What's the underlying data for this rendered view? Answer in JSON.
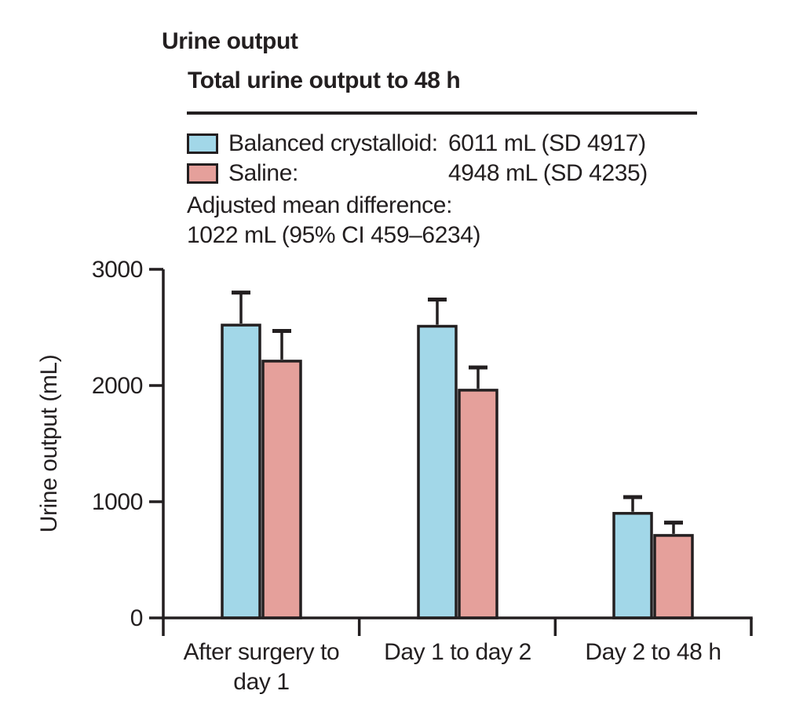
{
  "figure": {
    "title": "Urine output",
    "subtitle": "Total urine output to 48 h"
  },
  "summary": {
    "legend": [
      {
        "label": "Balanced crystalloid:",
        "value": "6011 mL (SD 4917)",
        "swatch_color": "#a2d7e8"
      },
      {
        "label": "Saline:",
        "value": "4948 mL (SD 4235)",
        "swatch_color": "#e5a09b"
      }
    ],
    "adjusted_label": "Adjusted mean difference:",
    "adjusted_value": "1022 mL (95% CI 459–6234)"
  },
  "chart_data": {
    "type": "bar",
    "title": "Total urine output to 48 h",
    "categories": [
      "After surgery to day 1",
      "Day 1 to day 2",
      "Day 2 to 48 h"
    ],
    "category_label_lines": [
      [
        "After surgery to",
        "day 1"
      ],
      [
        "Day 1 to day 2"
      ],
      [
        "Day 2 to 48 h"
      ]
    ],
    "series": [
      {
        "name": "Balanced crystalloid",
        "color": "#a2d7e8",
        "values": [
          2520,
          2510,
          900
        ],
        "error_upper": [
          280,
          230,
          140
        ]
      },
      {
        "name": "Saline",
        "color": "#e5a09b",
        "values": [
          2210,
          1960,
          710
        ],
        "error_upper": [
          260,
          195,
          110
        ]
      }
    ],
    "ylabel": "Urine output (mL)",
    "ylim": [
      0,
      3000
    ],
    "yticks": [
      0,
      1000,
      2000,
      3000
    ],
    "grid": false,
    "error_bars": "upper whiskers only",
    "legend_position": "above chart, top-left",
    "summary_stats": {
      "balanced_crystalloid_total": "6011 mL (SD 4917)",
      "saline_total": "4948 mL (SD 4235)",
      "adjusted_mean_difference": "1022 mL (95% CI 459–6234)"
    }
  },
  "style": {
    "ink": "#231f20",
    "background": "#ffffff"
  }
}
